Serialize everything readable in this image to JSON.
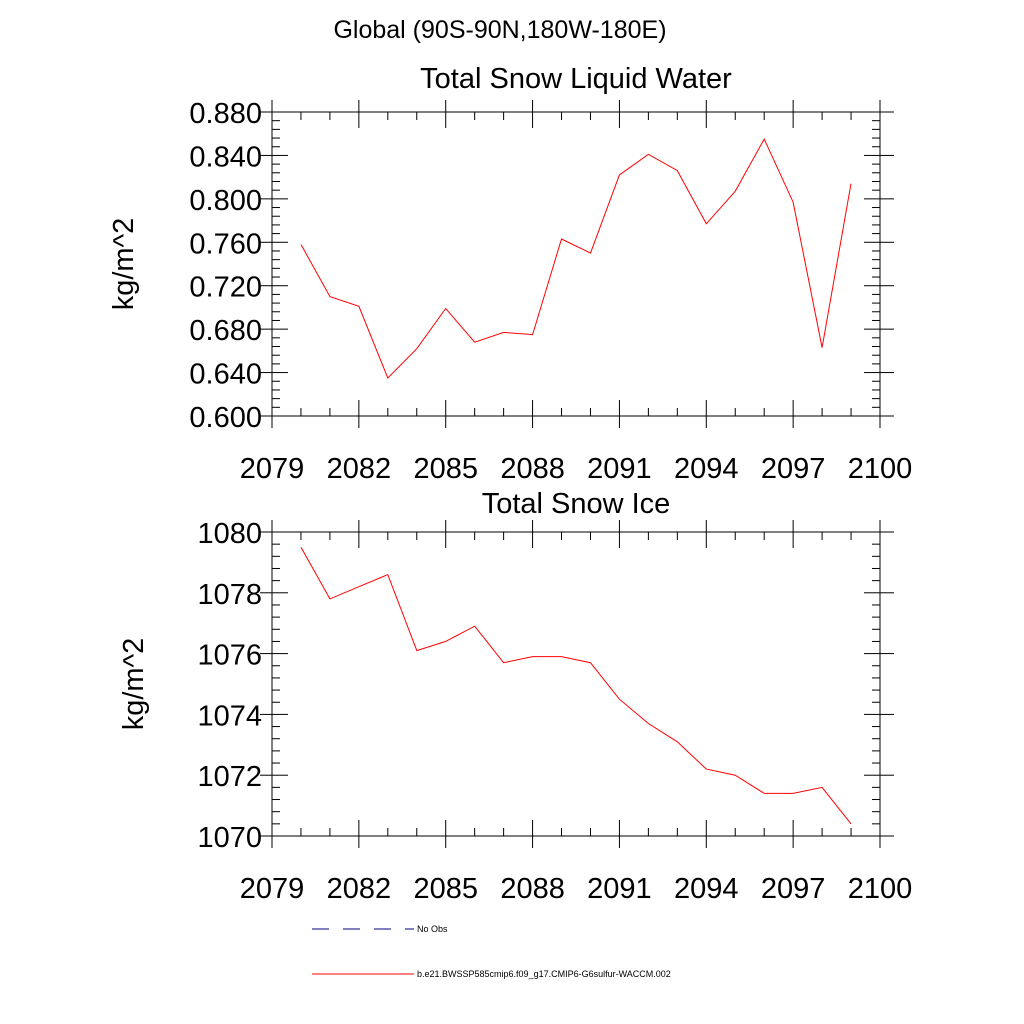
{
  "header": {
    "region_title": "Global (90S-90N,180W-180E)"
  },
  "chart_data": [
    {
      "type": "line",
      "title": "Total Snow Liquid Water",
      "xlabel": "",
      "ylabel": "kg/m^2",
      "xlim": [
        2079,
        2100
      ],
      "ylim": [
        0.6,
        0.88
      ],
      "x_ticks": [
        2079,
        2082,
        2085,
        2088,
        2091,
        2094,
        2097,
        2100
      ],
      "x_tick_labels": [
        "2079",
        "2082",
        "2085",
        "2088",
        "2091",
        "2094",
        "2097",
        "2100"
      ],
      "y_ticks": [
        0.6,
        0.64,
        0.68,
        0.72,
        0.76,
        0.8,
        0.84,
        0.88
      ],
      "y_tick_labels": [
        "0.600",
        "0.640",
        "0.680",
        "0.720",
        "0.760",
        "0.800",
        "0.840",
        "0.880"
      ],
      "grid": false,
      "x": [
        2080,
        2081,
        2082,
        2083,
        2084,
        2085,
        2086,
        2087,
        2088,
        2089,
        2090,
        2091,
        2092,
        2093,
        2094,
        2095,
        2096,
        2097,
        2098,
        2099
      ],
      "series": [
        {
          "name": "b.e21.BWSSP585cmip6.f09_g17.CMIP6-G6sulfur-WACCM.002",
          "color": "#ff0000",
          "values": [
            0.758,
            0.71,
            0.701,
            0.635,
            0.662,
            0.699,
            0.668,
            0.677,
            0.675,
            0.763,
            0.75,
            0.822,
            0.841,
            0.826,
            0.777,
            0.807,
            0.855,
            0.797,
            0.663,
            0.814
          ]
        }
      ]
    },
    {
      "type": "line",
      "title": "Total Snow Ice",
      "xlabel": "",
      "ylabel": "kg/m^2",
      "xlim": [
        2079,
        2100
      ],
      "ylim": [
        1070,
        1080
      ],
      "x_ticks": [
        2079,
        2082,
        2085,
        2088,
        2091,
        2094,
        2097,
        2100
      ],
      "x_tick_labels": [
        "2079",
        "2082",
        "2085",
        "2088",
        "2091",
        "2094",
        "2097",
        "2100"
      ],
      "y_ticks": [
        1070,
        1072,
        1074,
        1076,
        1078,
        1080
      ],
      "y_tick_labels": [
        "1070",
        "1072",
        "1074",
        "1076",
        "1078",
        "1080"
      ],
      "grid": false,
      "x": [
        2080,
        2081,
        2082,
        2083,
        2084,
        2085,
        2086,
        2087,
        2088,
        2089,
        2090,
        2091,
        2092,
        2093,
        2094,
        2095,
        2096,
        2097,
        2098,
        2099
      ],
      "series": [
        {
          "name": "b.e21.BWSSP585cmip6.f09_g17.CMIP6-G6sulfur-WACCM.002",
          "color": "#ff0000",
          "values": [
            1079.5,
            1077.8,
            1078.2,
            1078.6,
            1076.1,
            1076.4,
            1076.9,
            1075.7,
            1075.9,
            1075.9,
            1075.7,
            1074.5,
            1073.7,
            1073.1,
            1072.2,
            1072.0,
            1071.4,
            1071.4,
            1071.6,
            1070.4
          ]
        }
      ]
    }
  ],
  "legend": {
    "items": [
      {
        "label": "No Obs",
        "color": "#000080",
        "style": "dashed"
      },
      {
        "label": "b.e21.BWSSP585cmip6.f09_g17.CMIP6-G6sulfur-WACCM.002",
        "color": "#ff0000",
        "style": "solid"
      }
    ]
  }
}
